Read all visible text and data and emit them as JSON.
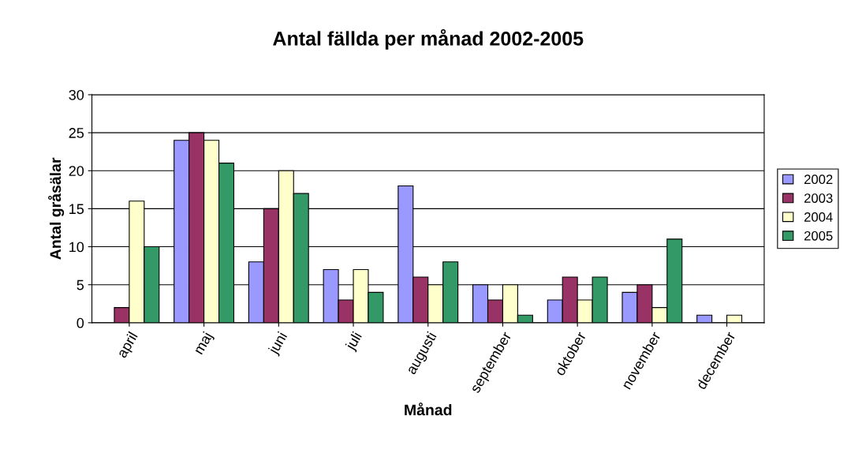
{
  "chart_data": {
    "type": "bar",
    "title": "Antal fällda per månad 2002-2005",
    "xlabel": "Månad",
    "ylabel": "Antal gråsälar",
    "categories": [
      "april",
      "maj",
      "juni",
      "juli",
      "augusti",
      "september",
      "oktober",
      "november",
      "december"
    ],
    "series": [
      {
        "name": "2002",
        "color": "#9999ff",
        "values": [
          null,
          24,
          8,
          7,
          18,
          5,
          3,
          4,
          1
        ]
      },
      {
        "name": "2003",
        "color": "#993366",
        "values": [
          2,
          25,
          15,
          3,
          6,
          3,
          6,
          5,
          null
        ]
      },
      {
        "name": "2004",
        "color": "#ffffcc",
        "values": [
          16,
          24,
          20,
          7,
          5,
          5,
          3,
          2,
          1
        ]
      },
      {
        "name": "2005",
        "color": "#339966",
        "values": [
          10,
          21,
          17,
          4,
          8,
          1,
          6,
          11,
          null
        ]
      }
    ],
    "ylim": [
      0,
      30
    ],
    "yticks": [
      0,
      5,
      10,
      15,
      20,
      25,
      30
    ],
    "grid": "y",
    "legend": "right"
  }
}
